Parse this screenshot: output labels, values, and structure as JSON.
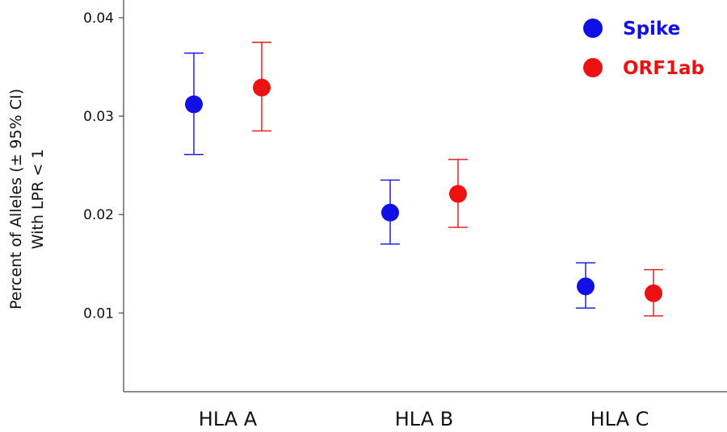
{
  "chart_data": {
    "type": "scatter",
    "ylabel_lines": [
      "Percent of Alleles (± 95% CI)",
      "With LPR < 1"
    ],
    "xlabel": "",
    "categories": [
      "HLA A",
      "HLA B",
      "HLA C"
    ],
    "ylim": [
      0.002,
      0.0418
    ],
    "yticks": [
      0.01,
      0.02,
      0.03,
      0.04
    ],
    "ytick_labels": [
      "0.01",
      "0.02",
      "0.03",
      "0.04"
    ],
    "grid": false,
    "legend_position": "top-right",
    "series": [
      {
        "name": "Spike",
        "color": "#1010e6",
        "values": [
          0.0312,
          0.0202,
          0.0127
        ],
        "ci_low": [
          0.0261,
          0.017,
          0.0105
        ],
        "ci_high": [
          0.0364,
          0.0235,
          0.0151
        ]
      },
      {
        "name": "ORF1ab",
        "color": "#ee1111",
        "values": [
          0.0329,
          0.0221,
          0.012
        ],
        "ci_low": [
          0.0285,
          0.0187,
          0.0097
        ],
        "ci_high": [
          0.0375,
          0.0256,
          0.0144
        ]
      }
    ]
  }
}
